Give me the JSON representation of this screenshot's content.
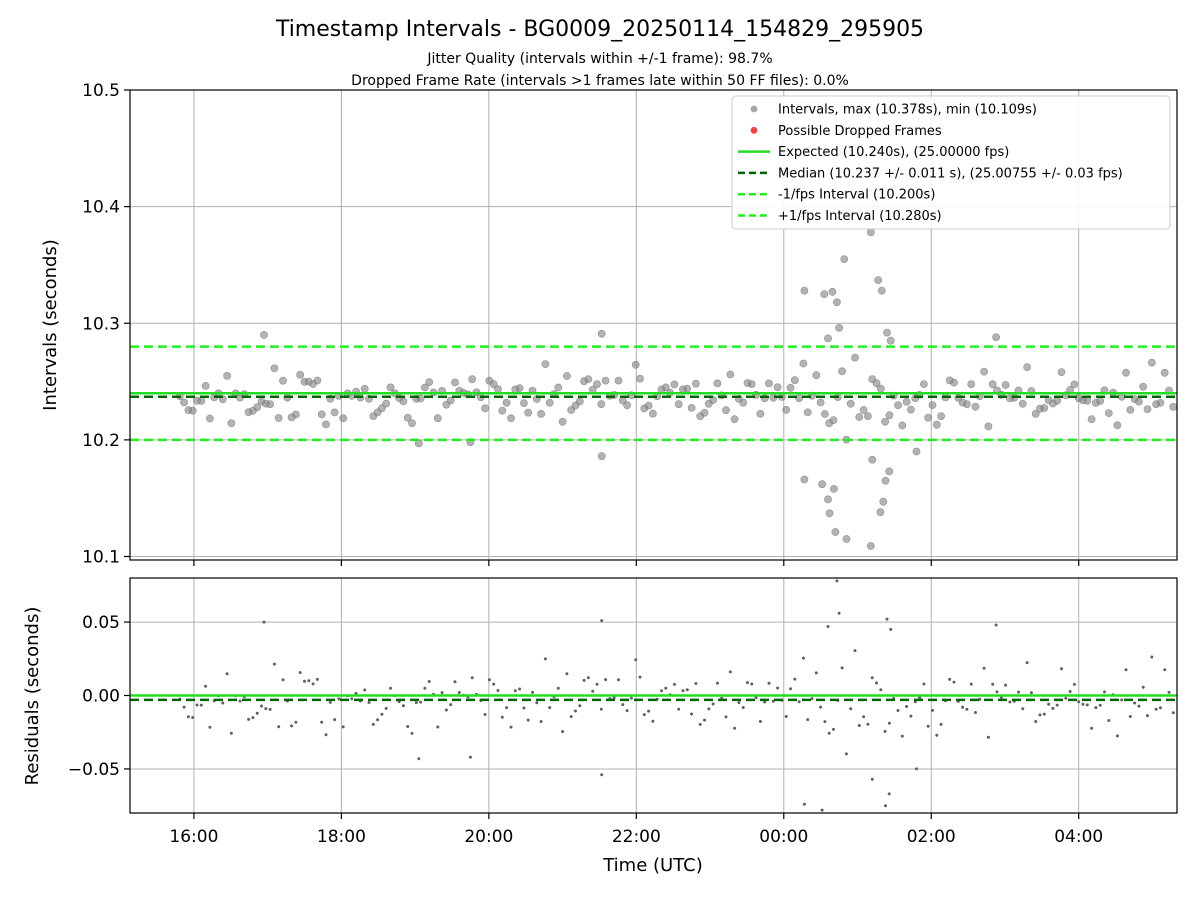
{
  "title": "Timestamp Intervals - BG0009_20250114_154829_295905",
  "subtitle_jitter": "Jitter Quality (intervals within +/-1 frame): 98.7%",
  "subtitle_dropped": "Dropped Frame Rate (intervals >1 frames late within 50 FF files): 0.0%",
  "colors": {
    "points": "#808080",
    "dropped": "#ee4444",
    "expected": "#22dd22",
    "median": "#006400",
    "interval": "#22ee22",
    "grid": "#b0b0b0"
  },
  "chart_data": [
    {
      "type": "scatter",
      "ylabel": "Intervals (seconds)",
      "ylim": [
        10.097,
        10.5
      ],
      "yticks": [
        10.1,
        10.2,
        10.3,
        10.4,
        10.5
      ],
      "ytick_labels": [
        "10.1",
        "10.2",
        "10.3",
        "10.4",
        "10.5"
      ],
      "xlim_hours": [
        15.133,
        29.333
      ],
      "xticks_hours": [
        16,
        18,
        20,
        22,
        24,
        26,
        28
      ],
      "grid": true,
      "legend_placement": "top-right",
      "legend": [
        {
          "label": "Intervals, max (10.378s), min (10.109s)",
          "marker": "dot-gray"
        },
        {
          "label": "Possible Dropped Frames",
          "marker": "dot-red"
        },
        {
          "label": "Expected (10.240s), (25.00000 fps)",
          "marker": "solid-green"
        },
        {
          "label": "Median (10.237 +/- 0.011 s), (25.00755 +/- 0.03 fps)",
          "marker": "dashed-darkgreen"
        },
        {
          "label": "-1/fps Interval (10.200s)",
          "marker": "dashed-green"
        },
        {
          "label": "+1/fps Interval (10.280s)",
          "marker": "dashed-green"
        }
      ],
      "lines": {
        "expected": 10.24,
        "median": 10.237,
        "minus_interval": 10.2,
        "plus_interval": 10.28
      },
      "data_start_hours": 15.808,
      "point_spacing_seconds": 10.24,
      "outliers": [
        {
          "x": 16.95,
          "y": 10.29
        },
        {
          "x": 21.53,
          "y": 10.291
        },
        {
          "x": 21.53,
          "y": 10.186
        },
        {
          "x": 19.05,
          "y": 10.197
        },
        {
          "x": 19.75,
          "y": 10.198
        },
        {
          "x": 0.28,
          "y": 10.328
        },
        {
          "x": 0.55,
          "y": 10.325
        },
        {
          "x": 0.66,
          "y": 10.327
        },
        {
          "x": 0.72,
          "y": 10.318
        },
        {
          "x": 0.82,
          "y": 10.355
        },
        {
          "x": 0.75,
          "y": 10.296
        },
        {
          "x": 1.18,
          "y": 10.378
        },
        {
          "x": 1.28,
          "y": 10.337
        },
        {
          "x": 1.33,
          "y": 10.328
        },
        {
          "x": 1.4,
          "y": 10.292
        },
        {
          "x": 1.45,
          "y": 10.285
        },
        {
          "x": 0.6,
          "y": 10.287
        },
        {
          "x": 0.28,
          "y": 10.166
        },
        {
          "x": 0.52,
          "y": 10.162
        },
        {
          "x": 0.6,
          "y": 10.149
        },
        {
          "x": 0.62,
          "y": 10.137
        },
        {
          "x": 0.68,
          "y": 10.158
        },
        {
          "x": 0.7,
          "y": 10.121
        },
        {
          "x": 0.85,
          "y": 10.115
        },
        {
          "x": 1.18,
          "y": 10.109
        },
        {
          "x": 1.31,
          "y": 10.138
        },
        {
          "x": 1.35,
          "y": 10.147
        },
        {
          "x": 1.38,
          "y": 10.165
        },
        {
          "x": 1.43,
          "y": 10.173
        },
        {
          "x": 1.2,
          "y": 10.183
        },
        {
          "x": 1.8,
          "y": 10.19
        },
        {
          "x": 2.88,
          "y": 10.288
        }
      ]
    },
    {
      "type": "scatter",
      "ylabel": "Residuals (seconds)",
      "xlabel": "Time (UTC)",
      "ylim": [
        -0.08,
        0.08
      ],
      "yticks": [
        0.05,
        0.0,
        -0.05
      ],
      "ytick_labels": [
        "0.05",
        "0.00",
        "−0.05"
      ],
      "xtick_labels": [
        "16:00",
        "18:00",
        "20:00",
        "22:00",
        "00:00",
        "02:00",
        "04:00"
      ],
      "grid": true,
      "lines": {
        "zero": 0.0,
        "median": -0.003
      }
    }
  ]
}
